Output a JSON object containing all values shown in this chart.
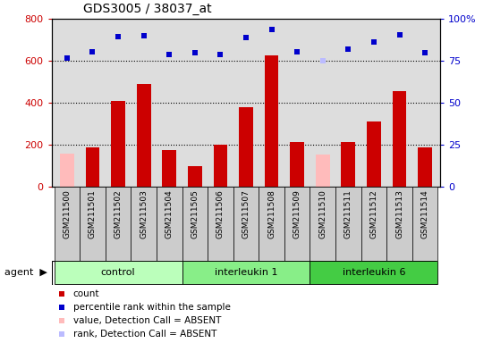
{
  "title": "GDS3005 / 38037_at",
  "samples": [
    "GSM211500",
    "GSM211501",
    "GSM211502",
    "GSM211503",
    "GSM211504",
    "GSM211505",
    "GSM211506",
    "GSM211507",
    "GSM211508",
    "GSM211509",
    "GSM211510",
    "GSM211511",
    "GSM211512",
    "GSM211513",
    "GSM211514"
  ],
  "groups": [
    {
      "label": "control",
      "color": "#bbffbb",
      "start": 0,
      "end": 5
    },
    {
      "label": "interleukin 1",
      "color": "#88ee88",
      "start": 5,
      "end": 10
    },
    {
      "label": "interleukin 6",
      "color": "#44cc44",
      "start": 10,
      "end": 15
    }
  ],
  "count_values": [
    160,
    190,
    410,
    490,
    175,
    100,
    200,
    380,
    625,
    215,
    155,
    215,
    310,
    455,
    190
  ],
  "count_absent": [
    true,
    false,
    false,
    false,
    false,
    false,
    false,
    false,
    false,
    false,
    true,
    false,
    false,
    false,
    false
  ],
  "rank_values": [
    615,
    645,
    715,
    720,
    630,
    640,
    630,
    710,
    750,
    645,
    600,
    655,
    690,
    725,
    640
  ],
  "rank_absent": [
    false,
    false,
    false,
    false,
    false,
    false,
    false,
    false,
    false,
    false,
    true,
    false,
    false,
    false,
    false
  ],
  "ylim_left": [
    0,
    800
  ],
  "ylim_right": [
    0,
    100
  ],
  "yticks_left": [
    0,
    200,
    400,
    600,
    800
  ],
  "yticks_right": [
    0,
    25,
    50,
    75,
    100
  ],
  "left_color": "#cc0000",
  "right_color": "#0000cc",
  "absent_count_color": "#ffbbbb",
  "absent_rank_color": "#bbbbff",
  "plot_bg": "#dddddd",
  "label_bg": "#cccccc",
  "bar_width": 0.55
}
